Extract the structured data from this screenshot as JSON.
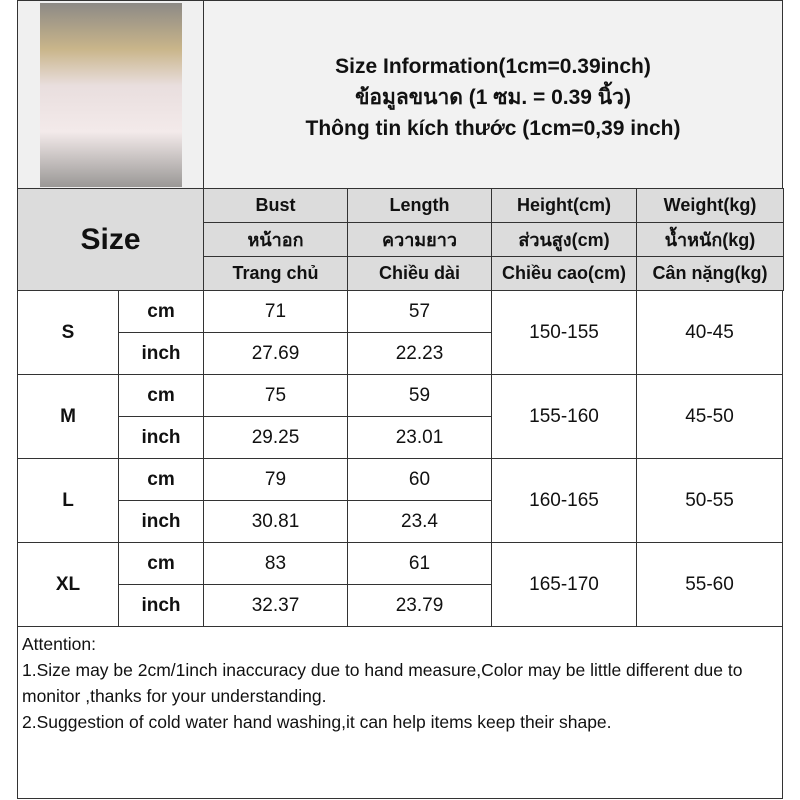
{
  "title": {
    "line1": "Size Information(1cm=0.39inch)",
    "line2": "ข้อมูลขนาด (1 ซม. = 0.39 นิ้ว)",
    "line3": "Thông tin kích thước (1cm=0,39 inch)"
  },
  "size_header": "Size",
  "columns": [
    {
      "en": "Bust",
      "th": "หน้าอก",
      "vi": "Trang chủ"
    },
    {
      "en": "Length",
      "th": "ความยาว",
      "vi": "Chiều dài"
    },
    {
      "en": "Height(cm)",
      "th": "ส่วนสูง(cm)",
      "vi": "Chiều cao(cm)"
    },
    {
      "en": "Weight(kg)",
      "th": "น้ำหนัก(kg)",
      "vi": "Cân nặng(kg)"
    }
  ],
  "units": {
    "cm": "cm",
    "inch": "inch"
  },
  "rows": [
    {
      "size": "S",
      "bust_cm": "71",
      "length_cm": "57",
      "bust_in": "27.69",
      "length_in": "22.23",
      "height": "150-155",
      "weight": "40-45"
    },
    {
      "size": "M",
      "bust_cm": "75",
      "length_cm": "59",
      "bust_in": "29.25",
      "length_in": "23.01",
      "height": "155-160",
      "weight": "45-50"
    },
    {
      "size": "L",
      "bust_cm": "79",
      "length_cm": "60",
      "bust_in": "30.81",
      "length_in": "23.4",
      "height": "160-165",
      "weight": "50-55"
    },
    {
      "size": "XL",
      "bust_cm": "83",
      "length_cm": "61",
      "bust_in": "32.37",
      "length_in": "23.79",
      "height": "165-170",
      "weight": "55-60"
    }
  ],
  "attention": {
    "heading": "Attention:",
    "line1": "1.Size may be 2cm/1inch inaccuracy due to hand measure,Color may be little different due to monitor ,thanks for your understanding.",
    "line2": "2.Suggestion of cold water hand washing,it can help items keep their shape."
  }
}
